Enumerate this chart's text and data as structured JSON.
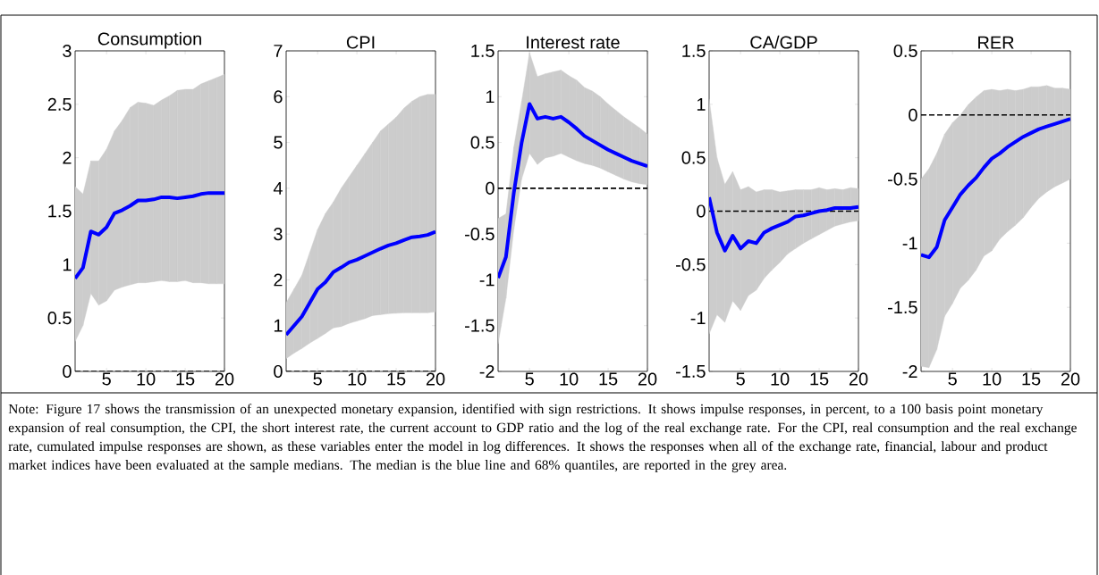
{
  "chart_data": [
    {
      "type": "line",
      "title": "Consumption",
      "x": [
        1,
        2,
        3,
        4,
        5,
        6,
        7,
        8,
        9,
        10,
        11,
        12,
        13,
        14,
        15,
        16,
        17,
        18,
        19,
        20
      ],
      "xlim": [
        1,
        20
      ],
      "xticks": [
        5,
        10,
        15,
        20
      ],
      "ylim": [
        0,
        3
      ],
      "yticks": [
        0,
        0.5,
        1,
        1.5,
        2,
        2.5,
        3
      ],
      "series": [
        {
          "color": "#0000ff",
          "values": [
            0.87,
            0.97,
            1.31,
            1.28,
            1.35,
            1.48,
            1.51,
            1.55,
            1.6,
            1.6,
            1.61,
            1.63,
            1.63,
            1.62,
            1.63,
            1.64,
            1.66,
            1.67,
            1.67,
            1.67
          ],
          "lower": [
            0.28,
            0.43,
            0.73,
            0.62,
            0.66,
            0.76,
            0.79,
            0.81,
            0.83,
            0.83,
            0.84,
            0.85,
            0.84,
            0.84,
            0.85,
            0.83,
            0.83,
            0.82,
            0.82,
            0.82
          ],
          "upper": [
            1.73,
            1.66,
            1.97,
            1.97,
            2.08,
            2.25,
            2.35,
            2.47,
            2.52,
            2.51,
            2.49,
            2.54,
            2.58,
            2.63,
            2.64,
            2.64,
            2.69,
            2.72,
            2.75,
            2.78
          ]
        }
      ],
      "ref_lines": [
        {
          "axis": "y",
          "value": 0,
          "color": "#000000",
          "line_style": "dashed"
        }
      ],
      "annotations": [
        "Note: Figure 17 shows the transmission of an unexpected monetary expansion, identified with sign restrictions. It shows impulse responses, in percent, to a 100 basis point monetary expansion of real consumption, the CPI, the short interest rate, the current account to GDP ratio and the log of the real exchange rate. For the CPI, real consumption and the real exchange rate, cumulated impulse responses are shown, as these variables enter the model in log differences. It shows the responses when all of the exchange rate, financial, labour and product market indices have been evaluated at the sample medians. The median is the blue line and 68% quantiles, are reported in the grey area."
      ]
    },
    {
      "type": "line",
      "title": "CPI",
      "x": [
        1,
        2,
        3,
        4,
        5,
        6,
        7,
        8,
        9,
        10,
        11,
        12,
        13,
        14,
        15,
        16,
        17,
        18,
        19,
        20
      ],
      "xlim": [
        1,
        20
      ],
      "xticks": [
        5,
        10,
        15,
        20
      ],
      "ylim": [
        0,
        7
      ],
      "yticks": [
        0,
        1,
        2,
        3,
        4,
        5,
        6,
        7
      ],
      "series": [
        {
          "color": "#0000ff",
          "values": [
            0.8,
            1.0,
            1.2,
            1.5,
            1.8,
            1.95,
            2.17,
            2.27,
            2.38,
            2.44,
            2.52,
            2.6,
            2.68,
            2.75,
            2.8,
            2.87,
            2.93,
            2.95,
            2.98,
            3.05
          ],
          "lower": [
            0.28,
            0.4,
            0.5,
            0.62,
            0.72,
            0.83,
            0.95,
            0.98,
            1.05,
            1.1,
            1.15,
            1.22,
            1.24,
            1.26,
            1.27,
            1.28,
            1.28,
            1.28,
            1.28,
            1.3
          ],
          "upper": [
            1.5,
            1.8,
            2.1,
            2.6,
            3.1,
            3.45,
            3.7,
            4.0,
            4.25,
            4.5,
            4.75,
            5.0,
            5.25,
            5.4,
            5.55,
            5.75,
            5.9,
            6.0,
            6.05,
            6.05
          ]
        }
      ],
      "ref_lines": [
        {
          "axis": "y",
          "value": 0,
          "color": "#000000",
          "line_style": "dashed"
        }
      ]
    },
    {
      "type": "line",
      "title": "Interest rate",
      "x": [
        1,
        2,
        3,
        4,
        5,
        6,
        7,
        8,
        9,
        10,
        11,
        12,
        13,
        14,
        15,
        16,
        17,
        18,
        19,
        20
      ],
      "xlim": [
        1,
        20
      ],
      "xticks": [
        5,
        10,
        15,
        20
      ],
      "ylim": [
        -2,
        1.5
      ],
      "yticks": [
        -2,
        -1.5,
        -1,
        -0.5,
        0,
        0.5,
        1,
        1.5
      ],
      "series": [
        {
          "color": "#0000ff",
          "values": [
            -0.98,
            -0.75,
            -0.05,
            0.5,
            0.92,
            0.76,
            0.78,
            0.76,
            0.78,
            0.72,
            0.65,
            0.57,
            0.52,
            0.47,
            0.42,
            0.38,
            0.34,
            0.3,
            0.27,
            0.24
          ],
          "lower": [
            -1.7,
            -1.2,
            -0.45,
            0.1,
            0.38,
            0.26,
            0.33,
            0.35,
            0.38,
            0.34,
            0.3,
            0.27,
            0.25,
            0.22,
            0.18,
            0.14,
            0.1,
            0.07,
            0.05,
            0.04
          ],
          "upper": [
            -0.33,
            -0.28,
            0.45,
            0.95,
            1.48,
            1.22,
            1.25,
            1.27,
            1.29,
            1.23,
            1.18,
            1.1,
            1.06,
            1.0,
            0.92,
            0.85,
            0.78,
            0.72,
            0.66,
            0.59
          ]
        }
      ],
      "ref_lines": [
        {
          "axis": "y",
          "value": 0,
          "color": "#000000",
          "line_style": "dashed"
        }
      ]
    },
    {
      "type": "line",
      "title": "CA/GDP",
      "x": [
        1,
        2,
        3,
        4,
        5,
        6,
        7,
        8,
        9,
        10,
        11,
        12,
        13,
        14,
        15,
        16,
        17,
        18,
        19,
        20
      ],
      "xlim": [
        1,
        20
      ],
      "xticks": [
        5,
        10,
        15,
        20
      ],
      "ylim": [
        -1.5,
        1.5
      ],
      "yticks": [
        -1.5,
        -1,
        -0.5,
        0,
        0.5,
        1,
        1.5
      ],
      "series": [
        {
          "color": "#0000ff",
          "values": [
            0.13,
            -0.2,
            -0.37,
            -0.23,
            -0.35,
            -0.28,
            -0.3,
            -0.2,
            -0.16,
            -0.13,
            -0.1,
            -0.05,
            -0.04,
            -0.02,
            0.0,
            0.01,
            0.03,
            0.03,
            0.03,
            0.04
          ],
          "lower": [
            -1.15,
            -0.97,
            -1.04,
            -0.84,
            -0.93,
            -0.79,
            -0.74,
            -0.63,
            -0.55,
            -0.48,
            -0.4,
            -0.35,
            -0.3,
            -0.26,
            -0.22,
            -0.18,
            -0.14,
            -0.12,
            -0.1,
            -0.09
          ],
          "upper": [
            1.05,
            0.5,
            0.25,
            0.37,
            0.2,
            0.23,
            0.18,
            0.2,
            0.2,
            0.18,
            0.19,
            0.2,
            0.2,
            0.2,
            0.22,
            0.2,
            0.21,
            0.2,
            0.22,
            0.21
          ]
        }
      ],
      "ref_lines": [
        {
          "axis": "y",
          "value": 0,
          "color": "#000000",
          "line_style": "dashed"
        }
      ]
    },
    {
      "type": "line",
      "title": "RER",
      "x": [
        1,
        2,
        3,
        4,
        5,
        6,
        7,
        8,
        9,
        10,
        11,
        12,
        13,
        14,
        15,
        16,
        17,
        18,
        19,
        20
      ],
      "xlim": [
        1,
        20
      ],
      "xticks": [
        5,
        10,
        15,
        20
      ],
      "ylim": [
        -2,
        0.5
      ],
      "yticks": [
        -2,
        -1.5,
        -1,
        -0.5,
        0,
        0.5
      ],
      "series": [
        {
          "color": "#0000ff",
          "values": [
            -1.09,
            -1.11,
            -1.03,
            -0.82,
            -0.72,
            -0.62,
            -0.55,
            -0.49,
            -0.41,
            -0.34,
            -0.3,
            -0.25,
            -0.21,
            -0.17,
            -0.14,
            -0.11,
            -0.09,
            -0.07,
            -0.05,
            -0.03
          ],
          "lower": [
            -1.96,
            -1.97,
            -1.83,
            -1.57,
            -1.47,
            -1.35,
            -1.29,
            -1.21,
            -1.1,
            -1.06,
            -0.97,
            -0.91,
            -0.86,
            -0.8,
            -0.72,
            -0.65,
            -0.6,
            -0.56,
            -0.53,
            -0.5
          ],
          "upper": [
            -0.5,
            -0.42,
            -0.3,
            -0.15,
            -0.06,
            0.0,
            0.08,
            0.14,
            0.19,
            0.2,
            0.19,
            0.2,
            0.19,
            0.2,
            0.22,
            0.22,
            0.23,
            0.21,
            0.21,
            0.2
          ]
        }
      ],
      "ref_lines": [
        {
          "axis": "y",
          "value": 0,
          "color": "#000000",
          "line_style": "dashed"
        }
      ]
    }
  ]
}
